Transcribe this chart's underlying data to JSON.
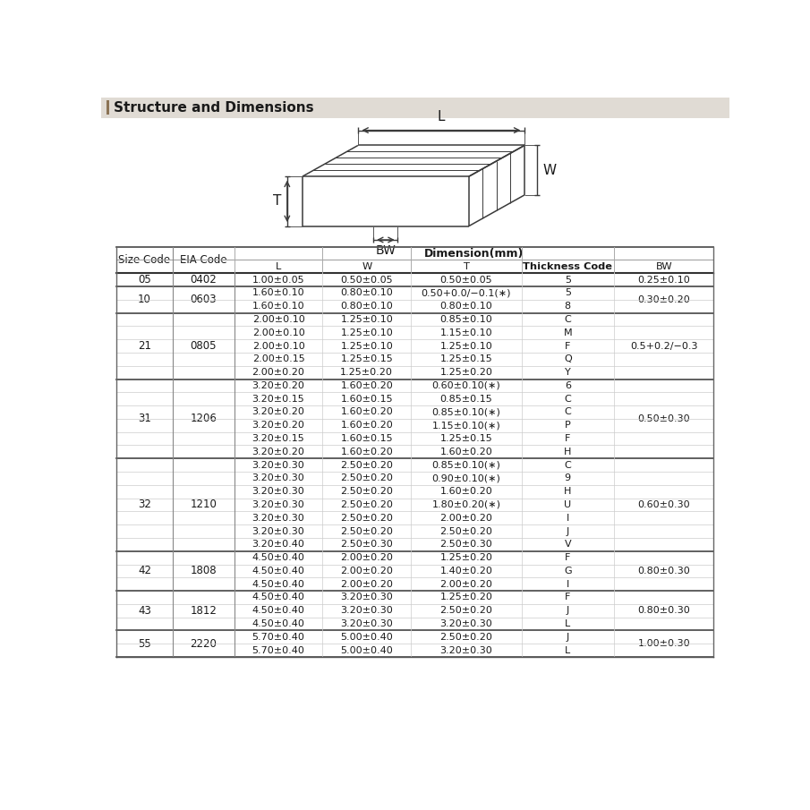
{
  "title": "Structure and Dimensions",
  "title_bar_color": "#e0dbd4",
  "title_accent_color": "#8B7355",
  "rows": [
    {
      "size": "05",
      "eia": "0402",
      "subrows": [
        {
          "L": "1.00±0.05",
          "W": "0.50±0.05",
          "T": "0.50±0.05",
          "TC": "5",
          "BW": "0.25±0.10"
        }
      ]
    },
    {
      "size": "10",
      "eia": "0603",
      "subrows": [
        {
          "L": "1.60±0.10",
          "W": "0.80±0.10",
          "T": "0.50+0.0/−0.1(∗)",
          "TC": "5",
          "BW": "0.30±0.20"
        },
        {
          "L": "1.60±0.10",
          "W": "0.80±0.10",
          "T": "0.80±0.10",
          "TC": "8",
          "BW": ""
        }
      ]
    },
    {
      "size": "21",
      "eia": "0805",
      "subrows": [
        {
          "L": "2.00±0.10",
          "W": "1.25±0.10",
          "T": "0.85±0.10",
          "TC": "C",
          "BW": "0.5+0.2/−0.3"
        },
        {
          "L": "2.00±0.10",
          "W": "1.25±0.10",
          "T": "1.15±0.10",
          "TC": "M",
          "BW": ""
        },
        {
          "L": "2.00±0.10",
          "W": "1.25±0.10",
          "T": "1.25±0.10",
          "TC": "F",
          "BW": ""
        },
        {
          "L": "2.00±0.15",
          "W": "1.25±0.15",
          "T": "1.25±0.15",
          "TC": "Q",
          "BW": ""
        },
        {
          "L": "2.00±0.20",
          "W": "1.25±0.20",
          "T": "1.25±0.20",
          "TC": "Y",
          "BW": ""
        }
      ]
    },
    {
      "size": "31",
      "eia": "1206",
      "subrows": [
        {
          "L": "3.20±0.20",
          "W": "1.60±0.20",
          "T": "0.60±0.10(∗)",
          "TC": "6",
          "BW": "0.50±0.30"
        },
        {
          "L": "3.20±0.15",
          "W": "1.60±0.15",
          "T": "0.85±0.15",
          "TC": "C",
          "BW": ""
        },
        {
          "L": "3.20±0.20",
          "W": "1.60±0.20",
          "T": "0.85±0.10(∗)",
          "TC": "C",
          "BW": ""
        },
        {
          "L": "3.20±0.20",
          "W": "1.60±0.20",
          "T": "1.15±0.10(∗)",
          "TC": "P",
          "BW": ""
        },
        {
          "L": "3.20±0.15",
          "W": "1.60±0.15",
          "T": "1.25±0.15",
          "TC": "F",
          "BW": ""
        },
        {
          "L": "3.20±0.20",
          "W": "1.60±0.20",
          "T": "1.60±0.20",
          "TC": "H",
          "BW": ""
        }
      ]
    },
    {
      "size": "32",
      "eia": "1210",
      "subrows": [
        {
          "L": "3.20±0.30",
          "W": "2.50±0.20",
          "T": "0.85±0.10(∗)",
          "TC": "C",
          "BW": "0.60±0.30"
        },
        {
          "L": "3.20±0.30",
          "W": "2.50±0.20",
          "T": "0.90±0.10(∗)",
          "TC": "9",
          "BW": ""
        },
        {
          "L": "3.20±0.30",
          "W": "2.50±0.20",
          "T": "1.60±0.20",
          "TC": "H",
          "BW": ""
        },
        {
          "L": "3.20±0.30",
          "W": "2.50±0.20",
          "T": "1.80±0.20(∗)",
          "TC": "U",
          "BW": ""
        },
        {
          "L": "3.20±0.30",
          "W": "2.50±0.20",
          "T": "2.00±0.20",
          "TC": "I",
          "BW": ""
        },
        {
          "L": "3.20±0.30",
          "W": "2.50±0.20",
          "T": "2.50±0.20",
          "TC": "J",
          "BW": ""
        },
        {
          "L": "3.20±0.40",
          "W": "2.50±0.30",
          "T": "2.50±0.30",
          "TC": "V",
          "BW": ""
        }
      ]
    },
    {
      "size": "42",
      "eia": "1808",
      "subrows": [
        {
          "L": "4.50±0.40",
          "W": "2.00±0.20",
          "T": "1.25±0.20",
          "TC": "F",
          "BW": "0.80±0.30"
        },
        {
          "L": "4.50±0.40",
          "W": "2.00±0.20",
          "T": "1.40±0.20",
          "TC": "G",
          "BW": ""
        },
        {
          "L": "4.50±0.40",
          "W": "2.00±0.20",
          "T": "2.00±0.20",
          "TC": "I",
          "BW": ""
        }
      ]
    },
    {
      "size": "43",
      "eia": "1812",
      "subrows": [
        {
          "L": "4.50±0.40",
          "W": "3.20±0.30",
          "T": "1.25±0.20",
          "TC": "F",
          "BW": "0.80±0.30"
        },
        {
          "L": "4.50±0.40",
          "W": "3.20±0.30",
          "T": "2.50±0.20",
          "TC": "J",
          "BW": ""
        },
        {
          "L": "4.50±0.40",
          "W": "3.20±0.30",
          "T": "3.20±0.30",
          "TC": "L",
          "BW": ""
        }
      ]
    },
    {
      "size": "55",
      "eia": "2220",
      "subrows": [
        {
          "L": "5.70±0.40",
          "W": "5.00±0.40",
          "T": "2.50±0.20",
          "TC": "J",
          "BW": "1.00±0.30"
        },
        {
          "L": "5.70±0.40",
          "W": "5.00±0.40",
          "T": "3.20±0.30",
          "TC": "L",
          "BW": ""
        }
      ]
    }
  ],
  "text_color": "#1a1a1a",
  "bg_color": "#ffffff"
}
